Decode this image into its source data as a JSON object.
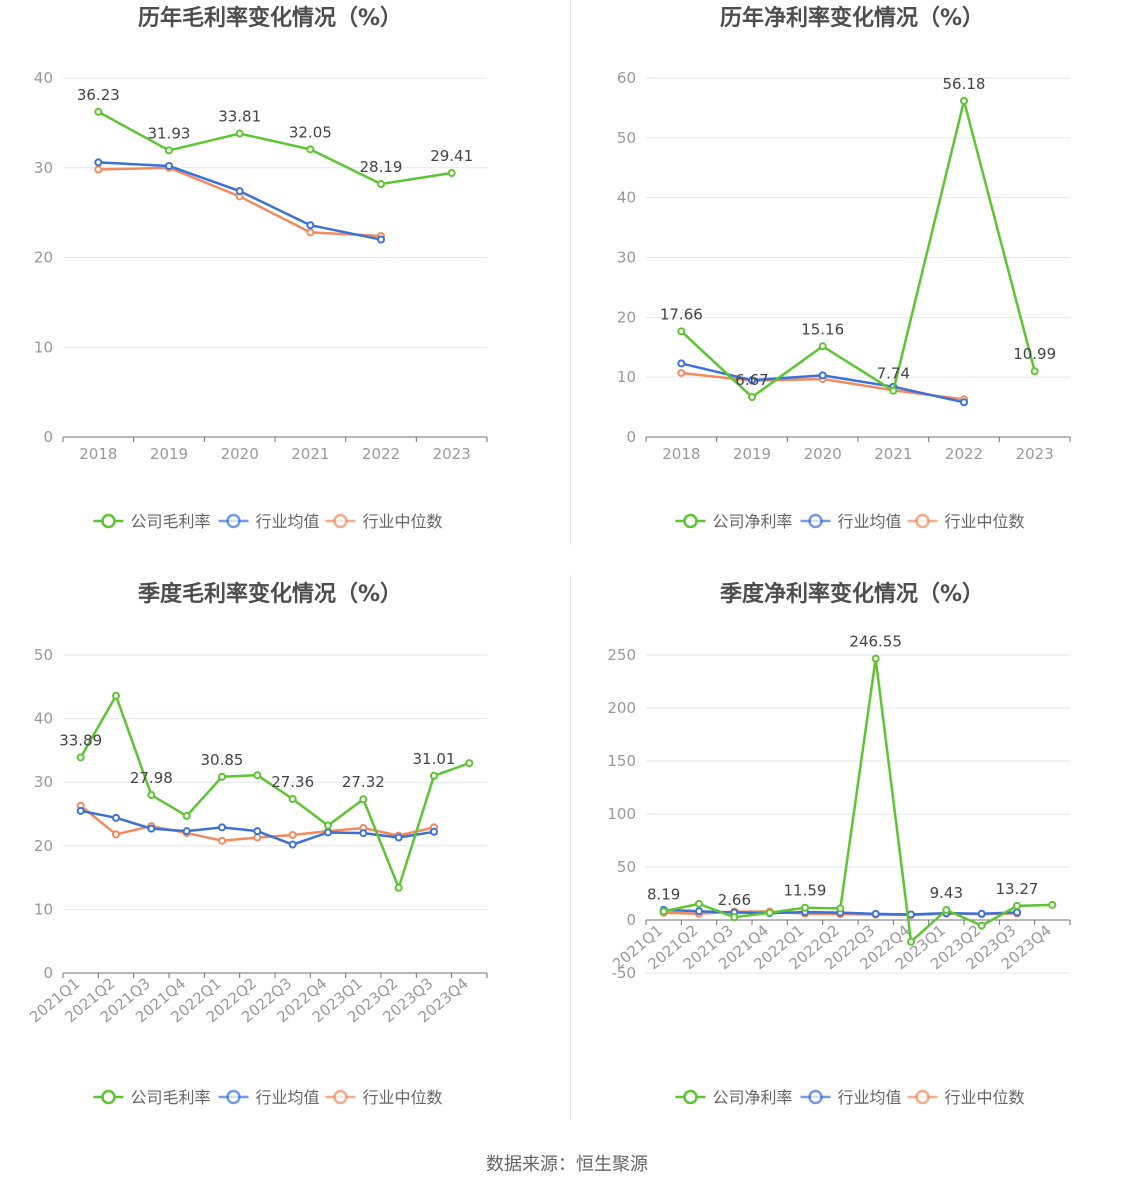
{
  "colors": {
    "company": "#5cc531",
    "industry_avg": "#3b71d8",
    "industry_median": "#f28a5e",
    "axis_text": "#999999",
    "grid": "#e3e6ef",
    "title": "#4d4d4d",
    "legend_text": "#666666"
  },
  "footer": {
    "source": "数据来源：恒生聚源"
  },
  "chart_data": [
    {
      "type": "line",
      "title": "历年毛利率变化情况（%）",
      "categories": [
        "2018",
        "2019",
        "2020",
        "2021",
        "2022",
        "2023"
      ],
      "ylim": [
        0,
        40
      ],
      "yticks": [
        0,
        10,
        20,
        30,
        40
      ],
      "grid": true,
      "legend_position": "bottom",
      "series": [
        {
          "name": "公司毛利率",
          "color_key": "company",
          "values": [
            36.23,
            31.93,
            33.81,
            32.05,
            28.19,
            29.41
          ],
          "labels": [
            "36.23",
            "31.93",
            "33.81",
            "32.05",
            "28.19",
            "29.41"
          ]
        },
        {
          "name": "行业均值",
          "color_key": "industry_avg",
          "values": [
            30.6,
            30.2,
            27.4,
            23.6,
            22.0,
            null
          ]
        },
        {
          "name": "行业中位数",
          "color_key": "industry_median",
          "values": [
            29.8,
            30.0,
            26.8,
            22.8,
            22.4,
            null
          ]
        }
      ]
    },
    {
      "type": "line",
      "title": "历年净利率变化情况（%）",
      "categories": [
        "2018",
        "2019",
        "2020",
        "2021",
        "2022",
        "2023"
      ],
      "ylim": [
        0,
        60
      ],
      "yticks": [
        0,
        10,
        20,
        30,
        40,
        50,
        60
      ],
      "grid": true,
      "legend_position": "bottom",
      "series": [
        {
          "name": "公司净利率",
          "color_key": "company",
          "values": [
            17.66,
            6.67,
            15.16,
            7.74,
            56.18,
            10.99
          ],
          "labels": [
            "17.66",
            "6.67",
            "15.16",
            "7.74",
            "56.18",
            "10.99"
          ]
        },
        {
          "name": "行业均值",
          "color_key": "industry_avg",
          "values": [
            12.3,
            9.5,
            10.3,
            8.4,
            5.8,
            null
          ]
        },
        {
          "name": "行业中位数",
          "color_key": "industry_median",
          "values": [
            10.7,
            9.4,
            9.7,
            7.8,
            6.3,
            null
          ]
        }
      ]
    },
    {
      "type": "line",
      "title": "季度毛利率变化情况（%）",
      "categories": [
        "2021Q1",
        "2021Q2",
        "2021Q3",
        "2021Q4",
        "2022Q1",
        "2022Q2",
        "2022Q3",
        "2022Q4",
        "2023Q1",
        "2023Q2",
        "2023Q3",
        "2023Q4"
      ],
      "ylim": [
        0,
        50
      ],
      "yticks": [
        0,
        10,
        20,
        30,
        40,
        50
      ],
      "grid": true,
      "legend_position": "bottom",
      "series": [
        {
          "name": "公司毛利率",
          "color_key": "company",
          "values": [
            33.89,
            43.6,
            27.98,
            24.7,
            30.85,
            31.1,
            27.36,
            23.2,
            27.32,
            13.4,
            31.01,
            33.0
          ],
          "labels": [
            "33.89",
            "",
            "27.98",
            "",
            "30.85",
            "",
            "27.36",
            "",
            "27.32",
            "",
            "31.01",
            ""
          ]
        },
        {
          "name": "行业均值",
          "color_key": "industry_avg",
          "values": [
            25.5,
            24.4,
            22.7,
            22.3,
            22.9,
            22.3,
            20.2,
            22.1,
            22.0,
            21.3,
            22.2,
            null
          ]
        },
        {
          "name": "行业中位数",
          "color_key": "industry_median",
          "values": [
            26.3,
            21.8,
            23.1,
            22.0,
            20.8,
            21.3,
            21.7,
            22.3,
            22.8,
            21.6,
            22.9,
            null
          ]
        }
      ]
    },
    {
      "type": "line",
      "title": "季度净利率变化情况（%）",
      "categories": [
        "2021Q1",
        "2021Q2",
        "2021Q3",
        "2021Q4",
        "2022Q1",
        "2022Q2",
        "2022Q3",
        "2022Q4",
        "2023Q1",
        "2023Q2",
        "2023Q3",
        "2023Q4"
      ],
      "ylim": [
        -50,
        250
      ],
      "yticks": [
        -50,
        0,
        50,
        100,
        150,
        200,
        250
      ],
      "grid": true,
      "legend_position": "bottom",
      "series": [
        {
          "name": "公司净利率",
          "color_key": "company",
          "values": [
            8.19,
            15.2,
            2.66,
            6.8,
            11.59,
            10.9,
            246.55,
            -20.5,
            9.43,
            -5.3,
            13.27,
            14.3
          ],
          "labels": [
            "8.19",
            "",
            "2.66",
            "",
            "11.59",
            "",
            "246.55",
            "",
            "9.43",
            "",
            "13.27",
            ""
          ]
        },
        {
          "name": "行业均值",
          "color_key": "industry_avg",
          "values": [
            9.5,
            8.3,
            7.1,
            6.5,
            7.4,
            7.0,
            5.8,
            5.2,
            6.5,
            5.9,
            7.2,
            null
          ]
        },
        {
          "name": "行业中位数",
          "color_key": "industry_median",
          "values": [
            6.8,
            5.9,
            7.9,
            8.0,
            6.0,
            5.5,
            5.2,
            4.7,
            6.0,
            5.6,
            6.2,
            null
          ]
        }
      ]
    }
  ]
}
